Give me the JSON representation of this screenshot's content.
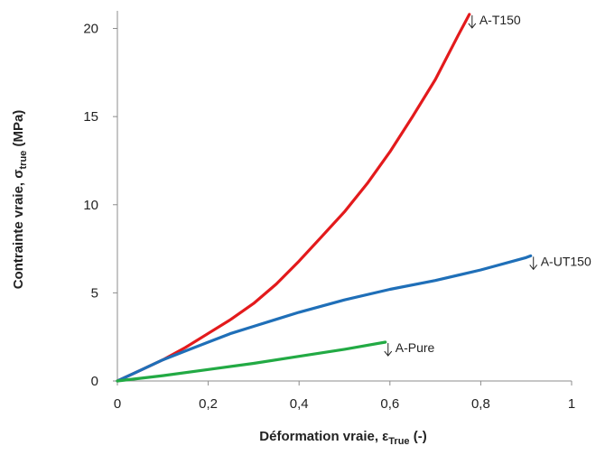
{
  "chart_data": {
    "type": "line",
    "xlabel": {
      "main": "Déformation vraie, ε",
      "sub": "True",
      "tail": " (-)"
    },
    "ylabel": {
      "main": "Contrainte vraie, σ",
      "sub": "true",
      "tail": " (MPa)"
    },
    "xlim": [
      0,
      1
    ],
    "ylim": [
      0,
      21
    ],
    "xticks": [
      0,
      0.2,
      0.4,
      0.6,
      0.8,
      1
    ],
    "xtick_labels": [
      "0",
      "0,2",
      "0,4",
      "0,6",
      "0,8",
      "1"
    ],
    "yticks": [
      0,
      5,
      10,
      15,
      20
    ],
    "ytick_labels": [
      "0",
      "5",
      "10",
      "15",
      "20"
    ],
    "grid": false,
    "legend": "none",
    "series": [
      {
        "name": "A-T150",
        "color": "#e31a1c",
        "x": [
          0,
          0.05,
          0.1,
          0.15,
          0.2,
          0.25,
          0.3,
          0.35,
          0.4,
          0.45,
          0.5,
          0.55,
          0.6,
          0.65,
          0.7,
          0.75,
          0.775
        ],
        "y": [
          0,
          0.6,
          1.2,
          1.9,
          2.7,
          3.5,
          4.4,
          5.5,
          6.8,
          8.2,
          9.6,
          11.2,
          13.0,
          15.0,
          17.1,
          19.6,
          20.8
        ]
      },
      {
        "name": "A-UT150",
        "color": "#1f6fb8",
        "x": [
          0,
          0.05,
          0.1,
          0.15,
          0.2,
          0.25,
          0.3,
          0.35,
          0.4,
          0.5,
          0.6,
          0.7,
          0.8,
          0.9,
          0.91
        ],
        "y": [
          0,
          0.6,
          1.2,
          1.7,
          2.2,
          2.7,
          3.1,
          3.5,
          3.9,
          4.6,
          5.2,
          5.7,
          6.3,
          7.0,
          7.1
        ]
      },
      {
        "name": "A-Pure",
        "color": "#22aa44",
        "x": [
          0,
          0.1,
          0.2,
          0.3,
          0.4,
          0.5,
          0.59
        ],
        "y": [
          0,
          0.3,
          0.65,
          1.0,
          1.4,
          1.8,
          2.2
        ]
      }
    ]
  }
}
